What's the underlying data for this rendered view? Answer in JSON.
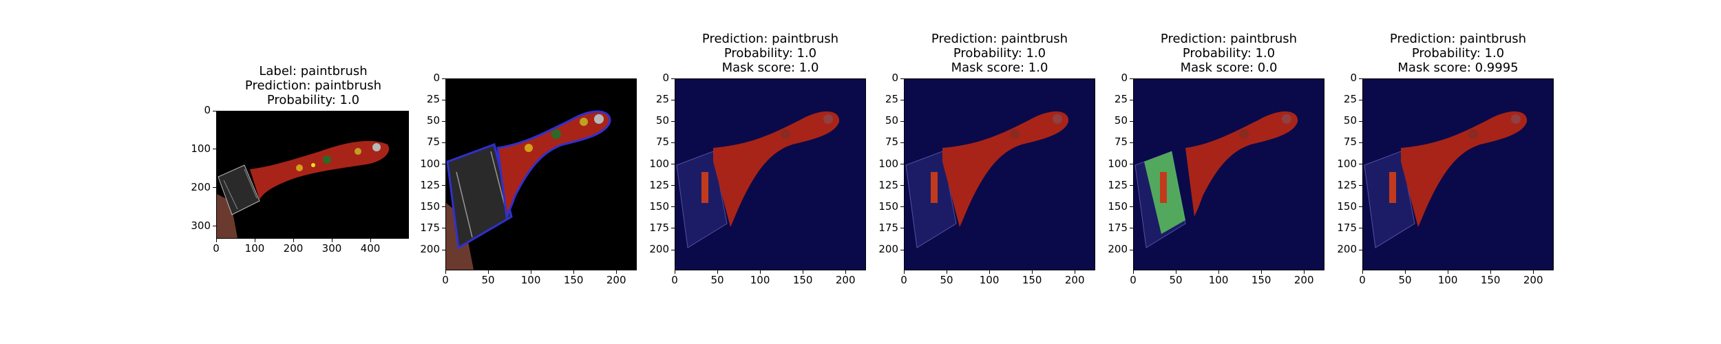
{
  "panels": [
    {
      "title_lines": [
        "Label: paintbrush",
        "Prediction: paintbrush",
        "Probability: 1.0"
      ],
      "x_ticks": [
        "0",
        "100",
        "200",
        "300",
        "400"
      ],
      "y_ticks": [
        "0",
        "100",
        "200",
        "300"
      ],
      "x_tick_values": [
        0,
        100,
        200,
        300,
        400
      ],
      "y_tick_values": [
        0,
        100,
        200,
        300
      ],
      "x_range": [
        0,
        500
      ],
      "y_range": [
        0,
        333
      ]
    },
    {
      "title_lines": [],
      "x_ticks": [
        "0",
        "50",
        "100",
        "150",
        "200"
      ],
      "y_ticks": [
        "0",
        "25",
        "50",
        "75",
        "100",
        "125",
        "150",
        "175",
        "200"
      ],
      "x_tick_values": [
        0,
        50,
        100,
        150,
        200
      ],
      "y_tick_values": [
        0,
        25,
        50,
        75,
        100,
        125,
        150,
        175,
        200
      ],
      "x_range": [
        0,
        224
      ],
      "y_range": [
        0,
        224
      ]
    },
    {
      "title_lines": [
        "Prediction: paintbrush",
        "Probability: 1.0",
        "Mask score: 1.0"
      ],
      "x_ticks": [
        "0",
        "50",
        "100",
        "150",
        "200"
      ],
      "y_ticks": [
        "0",
        "25",
        "50",
        "75",
        "100",
        "125",
        "150",
        "175",
        "200"
      ],
      "x_tick_values": [
        0,
        50,
        100,
        150,
        200
      ],
      "y_tick_values": [
        0,
        25,
        50,
        75,
        100,
        125,
        150,
        175,
        200
      ],
      "x_range": [
        0,
        224
      ],
      "y_range": [
        0,
        224
      ]
    },
    {
      "title_lines": [
        "Prediction: paintbrush",
        "Probability: 1.0",
        "Mask score: 1.0"
      ],
      "x_ticks": [
        "0",
        "50",
        "100",
        "150",
        "200"
      ],
      "y_ticks": [
        "0",
        "25",
        "50",
        "75",
        "100",
        "125",
        "150",
        "175",
        "200"
      ],
      "x_tick_values": [
        0,
        50,
        100,
        150,
        200
      ],
      "y_tick_values": [
        0,
        25,
        50,
        75,
        100,
        125,
        150,
        175,
        200
      ],
      "x_range": [
        0,
        224
      ],
      "y_range": [
        0,
        224
      ]
    },
    {
      "title_lines": [
        "Prediction: paintbrush",
        "Probability: 1.0",
        "Mask score: 0.0"
      ],
      "x_ticks": [
        "0",
        "50",
        "100",
        "150",
        "200"
      ],
      "y_ticks": [
        "0",
        "25",
        "50",
        "75",
        "100",
        "125",
        "150",
        "175",
        "200"
      ],
      "x_tick_values": [
        0,
        50,
        100,
        150,
        200
      ],
      "y_tick_values": [
        0,
        25,
        50,
        75,
        100,
        125,
        150,
        175,
        200
      ],
      "x_range": [
        0,
        224
      ],
      "y_range": [
        0,
        224
      ]
    },
    {
      "title_lines": [
        "Prediction: paintbrush",
        "Probability: 1.0",
        "Mask score: 0.9995"
      ],
      "x_ticks": [
        "0",
        "50",
        "100",
        "150",
        "200"
      ],
      "y_ticks": [
        "0",
        "25",
        "50",
        "75",
        "100",
        "125",
        "150",
        "175",
        "200"
      ],
      "x_tick_values": [
        0,
        50,
        100,
        150,
        200
      ],
      "y_tick_values": [
        0,
        25,
        50,
        75,
        100,
        125,
        150,
        175,
        200
      ],
      "x_range": [
        0,
        224
      ],
      "y_range": [
        0,
        224
      ]
    }
  ],
  "colors": {
    "background_black": "#000000",
    "heatmap_navy": "#0a0a4a",
    "brush_red": "#b0281c",
    "mask_green": "#5cc25c",
    "contour_blue": "#2020c0"
  }
}
